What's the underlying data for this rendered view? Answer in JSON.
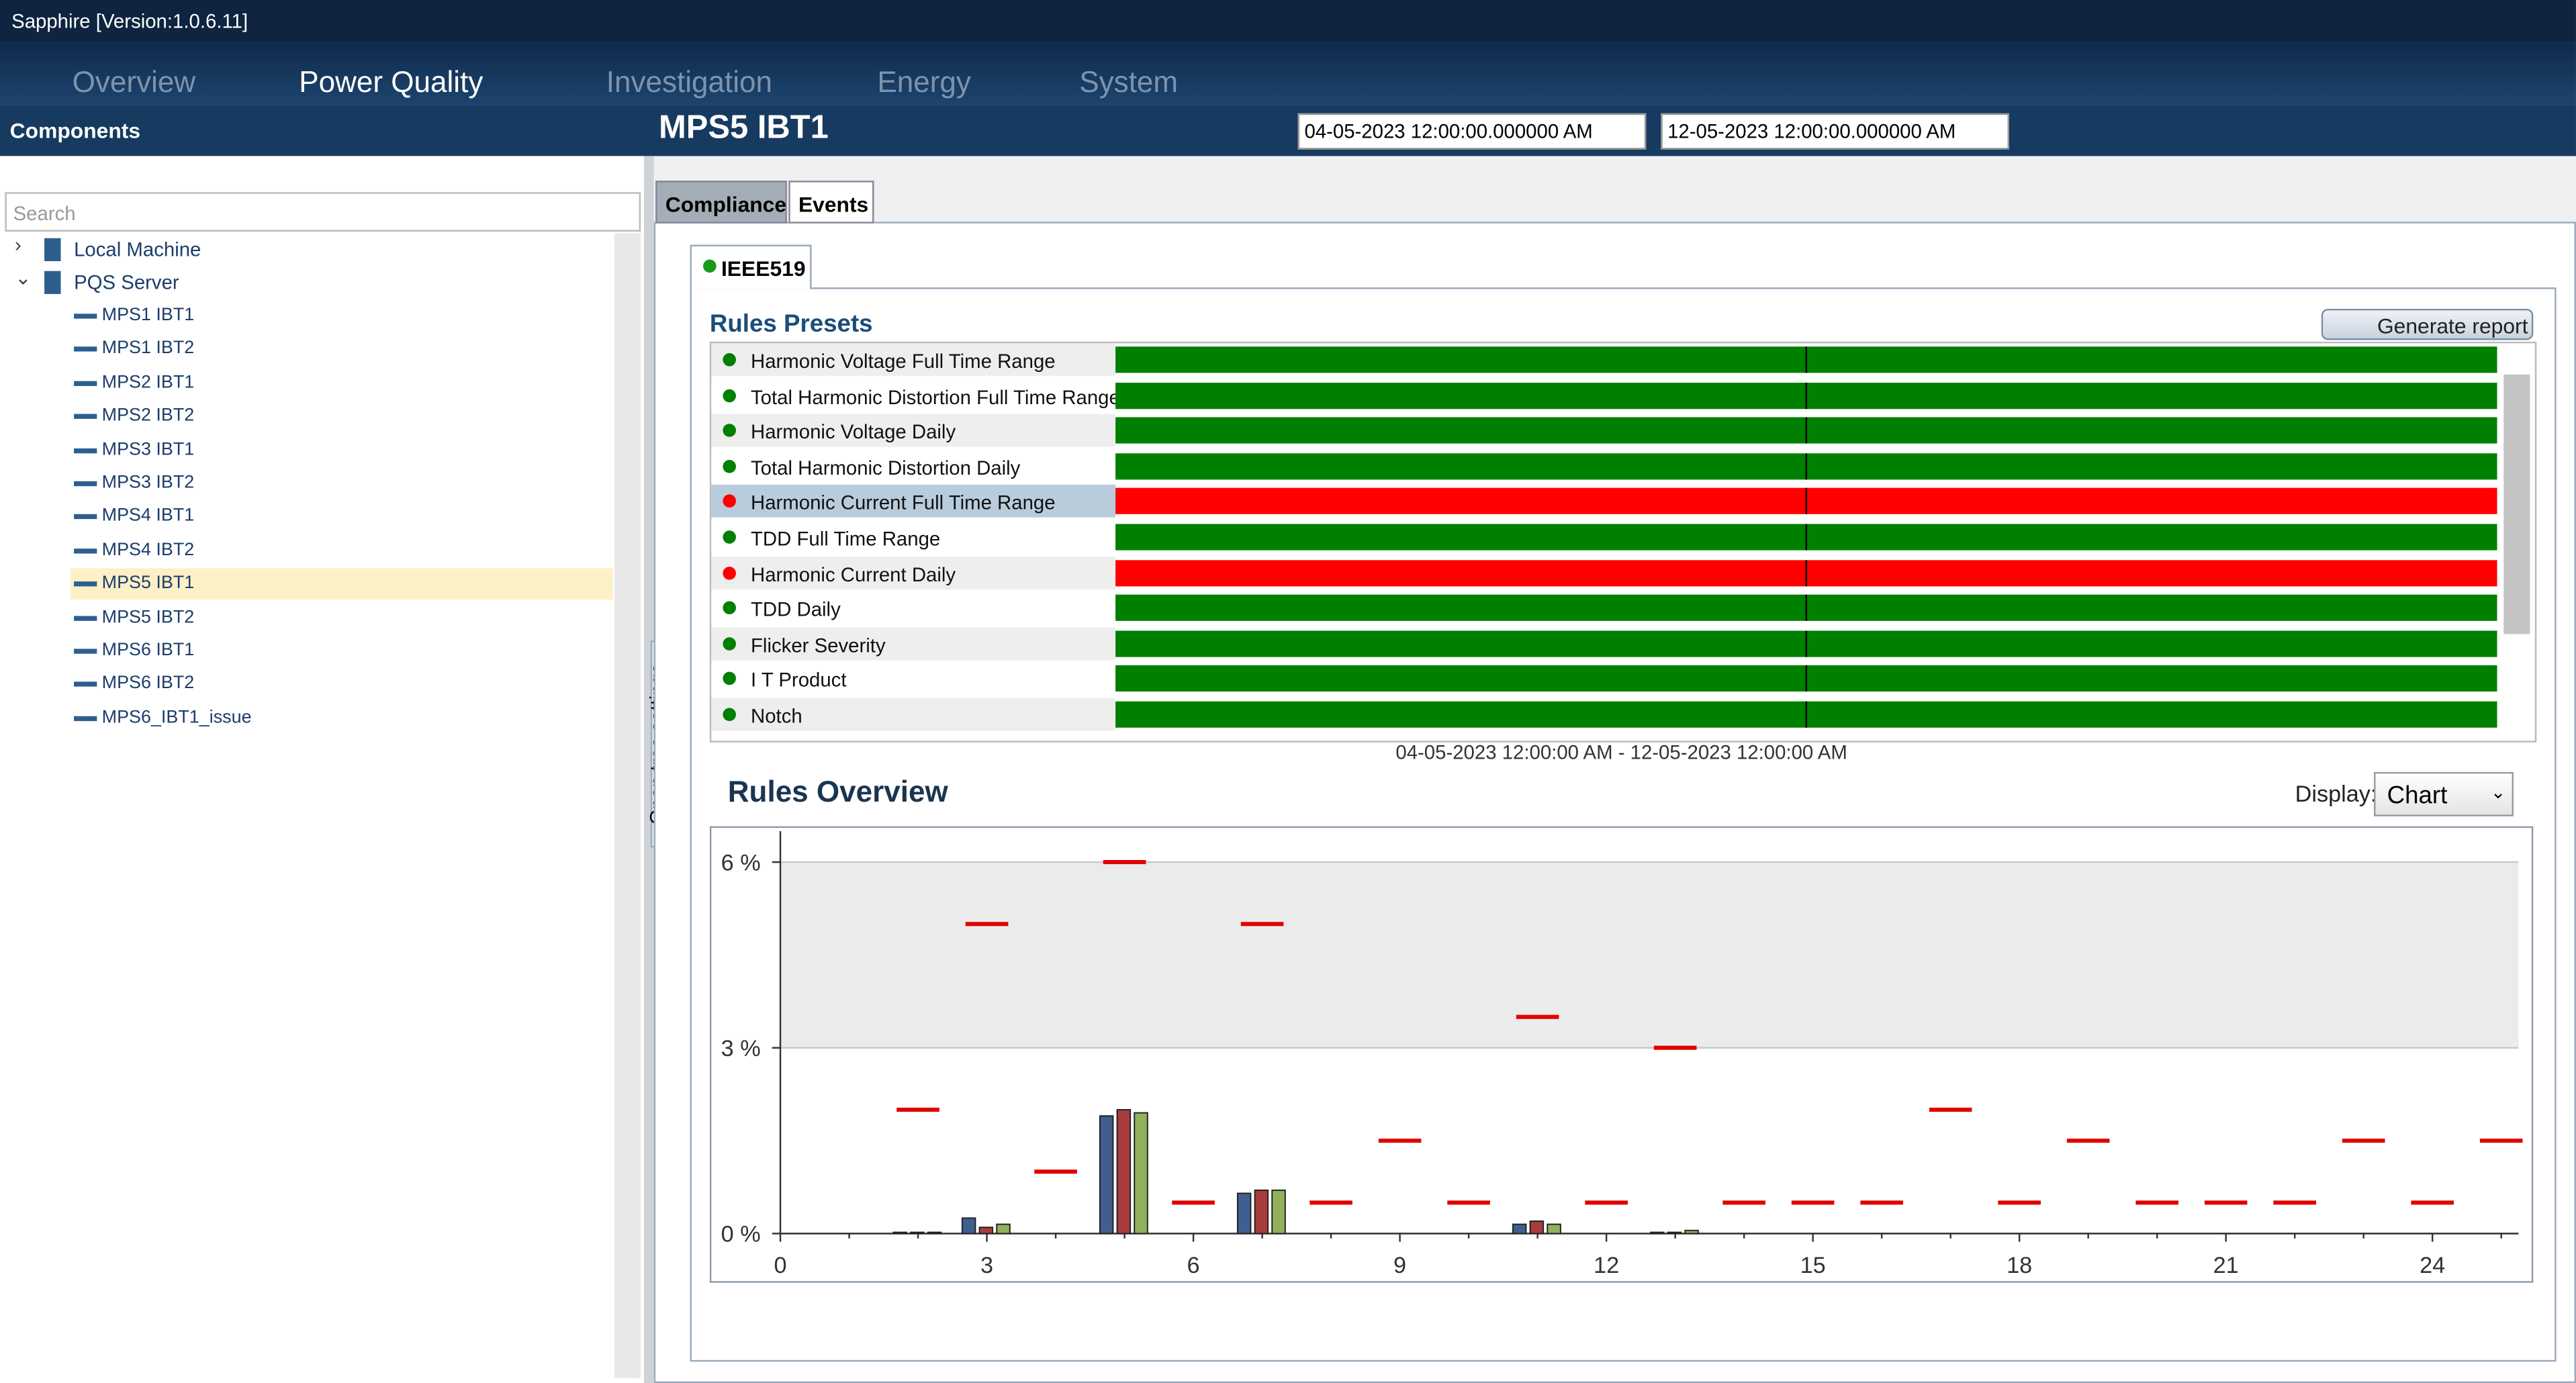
{
  "window_title": "Sapphire [Version:1.0.6.11]",
  "nav": [
    "Overview",
    "Power Quality",
    "Investigation",
    "Energy",
    "System"
  ],
  "sidebar": {
    "title": "Components",
    "search_placeholder": "Search",
    "side_tab": "Open tree settings",
    "selected_index": 8,
    "tree": [
      {
        "label": "Local Machine"
      },
      {
        "label": "PQS Server",
        "children": [
          "MPS1 IBT1",
          "MPS1 IBT2",
          "MPS2 IBT1",
          "MPS2 IBT2",
          "MPS3 IBT1",
          "MPS3 IBT2",
          "MPS4 IBT1",
          "MPS4 IBT2",
          "MPS5 IBT1",
          "MPS5 IBT2",
          "MPS6 IBT1",
          "MPS6 IBT2",
          "MPS6_IBT1_issue"
        ]
      }
    ]
  },
  "header": {
    "title": "MPS5 IBT1",
    "start": "04-05-2023 12:00:00.000000 AM",
    "end": "12-05-2023 12:00:00.000000 AM"
  },
  "tabs": [
    "Compliance",
    "Events"
  ],
  "subtab": "IEEE519",
  "rules_presets": {
    "title": "Rules Presets",
    "button": "Generate report",
    "range": "04-05-2023 12:00:00 AM - 12-05-2023 12:00:00 AM",
    "rows": [
      {
        "label": "Harmonic Voltage Full Time Range",
        "color": "#008000"
      },
      {
        "label": "Total Harmonic Distortion Full Time Range",
        "color": "#008000"
      },
      {
        "label": "Harmonic Voltage Daily",
        "color": "#008000"
      },
      {
        "label": "Total Harmonic Distortion Daily",
        "color": "#008000"
      },
      {
        "label": "Harmonic Current Full Time Range",
        "color": "#ff0000"
      },
      {
        "label": "TDD Full Time Range",
        "color": "#008000"
      },
      {
        "label": "Harmonic Current Daily",
        "color": "#ff0000"
      },
      {
        "label": "TDD Daily",
        "color": "#008000"
      },
      {
        "label": "Flicker Severity",
        "color": "#008000"
      },
      {
        "label": "I T Product",
        "color": "#008000"
      },
      {
        "label": "Notch",
        "color": "#008000"
      }
    ]
  },
  "rules_overview": {
    "title": "Rules Overview",
    "display_label": "Display:",
    "display_value": "Chart",
    "chart_data": {
      "type": "bar",
      "xlim": [
        0,
        25.25
      ],
      "ylim": [
        0,
        6.5
      ],
      "xticks": [
        0,
        3,
        6,
        9,
        12,
        15,
        18,
        21,
        24
      ],
      "yticks": [
        {
          "value": 0,
          "label": "0 %"
        },
        {
          "value": 3,
          "label": "3 %"
        },
        {
          "value": 6,
          "label": "6 %"
        }
      ],
      "grid": true,
      "x": [
        2,
        3,
        5,
        7,
        11,
        13
      ],
      "series": [
        {
          "color": "#3e5f8f",
          "values": [
            0.02,
            0.25,
            1.9,
            0.65,
            0.15,
            0.02
          ]
        },
        {
          "color": "#a83c3c",
          "values": [
            0.02,
            0.1,
            2.0,
            0.7,
            0.2,
            0.02
          ]
        },
        {
          "color": "#93b05c",
          "values": [
            0.02,
            0.15,
            1.95,
            0.7,
            0.15,
            0.05
          ]
        }
      ],
      "limits": {
        "color": "#e00000",
        "x": [
          2,
          3,
          4,
          5,
          6,
          7,
          8,
          9,
          10,
          11,
          12,
          13,
          14,
          15,
          16,
          17,
          18,
          19,
          20,
          21,
          22,
          23,
          24,
          25
        ],
        "values": [
          2,
          5,
          1,
          6,
          0.5,
          5,
          0.5,
          1.5,
          0.5,
          3.5,
          0.5,
          3,
          0.5,
          0.5,
          0.5,
          2,
          0.5,
          1.5,
          0.5,
          0.5,
          0.5,
          1.5,
          0.5,
          1.5
        ]
      }
    }
  }
}
